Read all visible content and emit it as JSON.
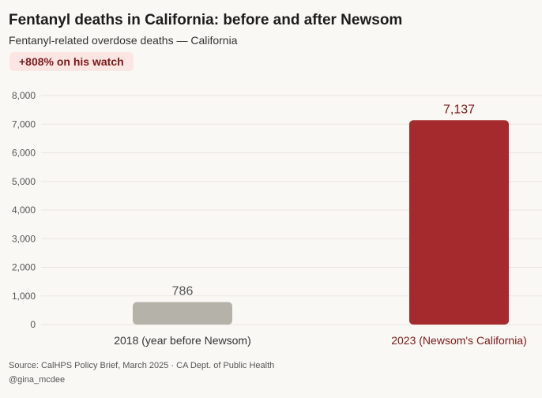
{
  "header": {
    "title": "Fentanyl deaths in California: before and after Newsom",
    "subtitle": "Fentanyl-related overdose deaths — California",
    "badge": "+808% on his watch"
  },
  "chart_data": {
    "type": "bar",
    "categories": [
      "2018 (year before Newsom)",
      "2023 (Newsom's California)"
    ],
    "values": [
      786,
      7137
    ],
    "value_labels": [
      "786",
      "7,137"
    ],
    "bar_colors": [
      "#b5b2aa",
      "#a52a2d"
    ],
    "category_label_colors": [
      "#333333",
      "#7a1a1a"
    ],
    "value_label_colors": [
      "#555555",
      "#7a1a1a"
    ],
    "yticks": [
      0,
      1000,
      2000,
      3000,
      4000,
      5000,
      6000,
      7000,
      8000
    ],
    "ytick_labels": [
      "0",
      "1,000",
      "2,000",
      "3,000",
      "4,000",
      "5,000",
      "6,000",
      "7,000",
      "8,000"
    ],
    "ylim": [
      0,
      8000
    ],
    "grid": true,
    "title": "Fentanyl deaths in California: before and after Newsom",
    "xlabel": "",
    "ylabel": ""
  },
  "footer": {
    "source": "Source: CalHPS Policy Brief, March 2025 · CA Dept. of Public Health",
    "handle": "@gina_mcdee"
  }
}
